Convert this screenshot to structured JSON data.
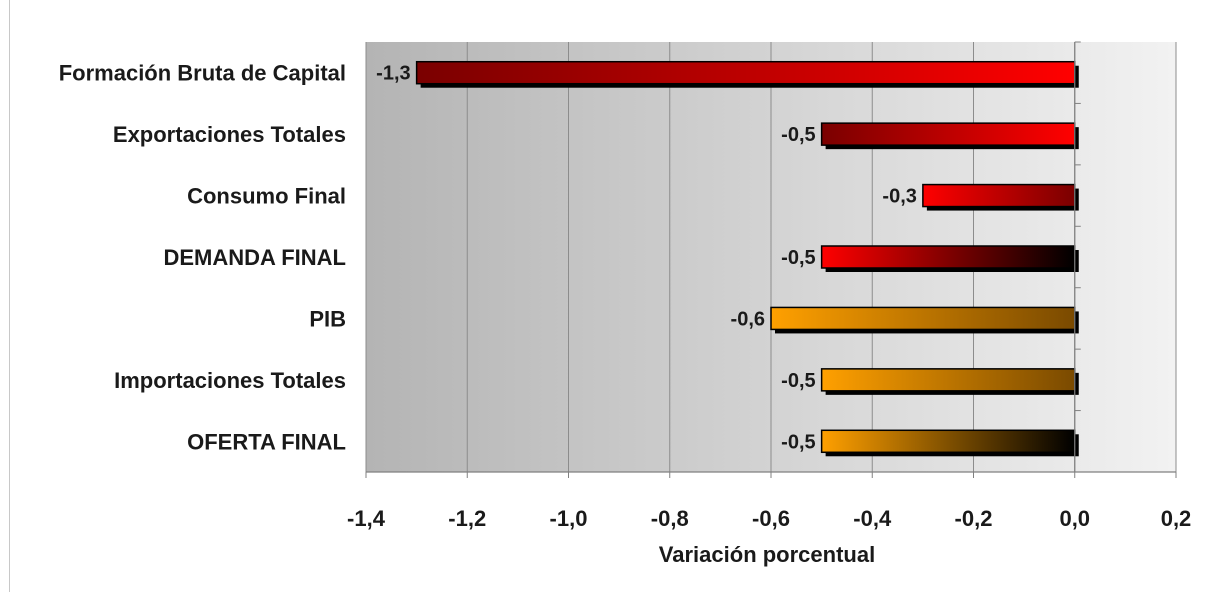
{
  "chart_data": {
    "type": "bar",
    "orientation": "horizontal",
    "categories": [
      "Formación Bruta de Capital",
      "Exportaciones Totales",
      "Consumo Final",
      "DEMANDA FINAL",
      "PIB",
      "Importaciones Totales",
      "OFERTA FINAL"
    ],
    "values": [
      -1.3,
      -0.5,
      -0.3,
      -0.5,
      -0.6,
      -0.5,
      -0.5
    ],
    "data_labels": [
      "-1,3",
      "-0,5",
      "-0,3",
      "-0,5",
      "-0,6",
      "-0,5",
      "-0,5"
    ],
    "bar_styles": [
      {
        "left": "#7a0000",
        "right": "#ff0000"
      },
      {
        "left": "#7a0000",
        "right": "#ff0000"
      },
      {
        "left": "#ff0000",
        "right": "#7a0000"
      },
      {
        "left": "#ff0000",
        "right": "#000000"
      },
      {
        "left": "#ffa000",
        "right": "#7a4a00"
      },
      {
        "left": "#ffa000",
        "right": "#7a4a00"
      },
      {
        "left": "#ffa000",
        "right": "#000000"
      }
    ],
    "xlabel": "Variación porcentual",
    "xlim": [
      -1.4,
      0.2
    ],
    "xticks": [
      -1.4,
      -1.2,
      -1.0,
      -0.8,
      -0.6,
      -0.4,
      -0.2,
      0.0,
      0.2
    ],
    "xtick_labels": [
      "-1,4",
      "-1,2",
      "-1,0",
      "-0,8",
      "-0,6",
      "-0,4",
      "-0,2",
      "0,0",
      "0,2"
    ],
    "grid": "vertical",
    "plot_background": {
      "left": "#b4b4b4",
      "right": "#f2f2f2"
    }
  }
}
